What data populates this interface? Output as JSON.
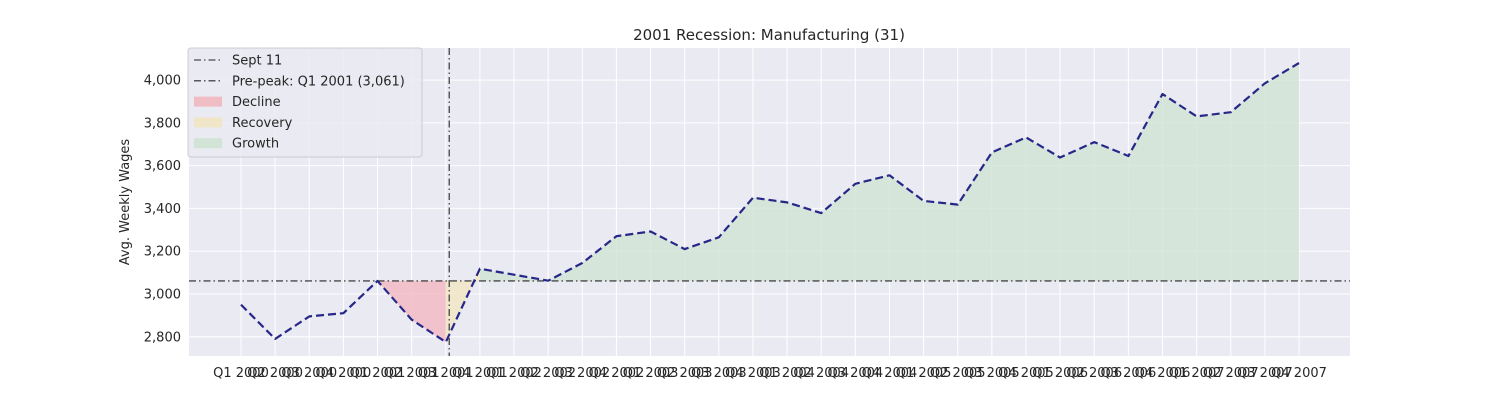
{
  "chart_data": {
    "type": "line",
    "title": "2001 Recession: Manufacturing (31)",
    "xlabel": "",
    "ylabel": "Avg. Weekly Wages",
    "categories": [
      "Q1 2000",
      "Q2 2000",
      "Q3 2000",
      "Q4 2000",
      "Q1 2001",
      "Q2 2001",
      "Q3 2001",
      "Q4 2001",
      "Q1 2002",
      "Q2 2002",
      "Q3 2002",
      "Q4 2002",
      "Q1 2003",
      "Q2 2003",
      "Q3 2003",
      "Q4 2003",
      "Q1 2004",
      "Q2 2004",
      "Q3 2004",
      "Q4 2004",
      "Q1 2005",
      "Q2 2005",
      "Q3 2005",
      "Q4 2005",
      "Q1 2006",
      "Q2 2006",
      "Q3 2006",
      "Q4 2006",
      "Q1 2007",
      "Q2 2007",
      "Q3 2007",
      "Q4 2007"
    ],
    "tick_labels": [
      "Q1 2000",
      "Q2 2000",
      "Q3 2000",
      "Q4 2000",
      "Q1 2001",
      "Q2 2001",
      "Q3 2001",
      "Q4 2001",
      "Q1 2002",
      "Q2 2002",
      "Q3 2002",
      "Q4 2002",
      "Q1 2003",
      "Q2 2003",
      "Q3 2003",
      "Q4 2003",
      "Q1 2004",
      "Q2 2004",
      "Q3 2004",
      "Q4 2004",
      "Q1 2005",
      "Q2 2005",
      "Q3 2005",
      "Q4 2005",
      "Q1 2006",
      "Q2 2006",
      "Q3 2006",
      "Q4 2006",
      "Q1 2007",
      "Q2 2007",
      "Q3 2007",
      "Q4 2007"
    ],
    "series": [
      {
        "values": [
          2950,
          2790,
          2895,
          2910,
          3061,
          2880,
          2775,
          3118,
          3090,
          3062,
          3145,
          3270,
          3292,
          3210,
          3265,
          3450,
          3428,
          3378,
          3515,
          3555,
          3435,
          3418,
          3662,
          3732,
          3638,
          3710,
          3645,
          3935,
          3830,
          3850,
          3985,
          4080
        ],
        "color": "#27278a"
      }
    ],
    "ylim": [
      2710,
      4150
    ],
    "yticks": [
      2800,
      3000,
      3200,
      3400,
      3600,
      3800,
      4000
    ],
    "ytick_labels": [
      "2,800",
      "3,000",
      "3,200",
      "3,400",
      "3,600",
      "3,800",
      "4,000"
    ],
    "reference_lines": [
      {
        "label": "Sept 11",
        "orientation": "vertical",
        "x": 6.1,
        "color": "#262626"
      },
      {
        "label": "Pre-peak: Q1 2001 (3,061)",
        "orientation": "horizontal",
        "y": 3061,
        "color": "#262626"
      }
    ],
    "shaded_regions": [
      {
        "label": "Decline",
        "from": 4,
        "to": 6,
        "color": "#f2b8c0"
      },
      {
        "label": "Recovery",
        "from": 6,
        "to": 7,
        "color": "#f1e6c2"
      },
      {
        "label": "Growth",
        "from": 7,
        "to": 31,
        "color": "#cfe3d3"
      }
    ],
    "baseline": 3061,
    "legend_position": "top-left",
    "grid": true,
    "background": "#eaeaf2"
  }
}
